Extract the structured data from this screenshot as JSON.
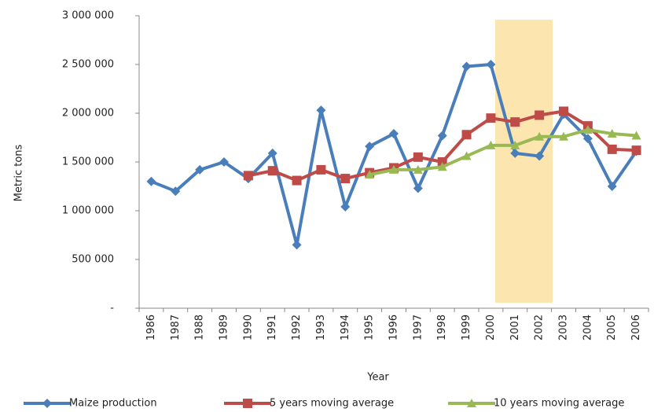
{
  "chart_data": {
    "type": "line",
    "x_label": "Year",
    "y_label": "Metric tons",
    "categories": [
      "1986",
      "1987",
      "1988",
      "1989",
      "1990",
      "1991",
      "1992",
      "1993",
      "1994",
      "1995",
      "1996",
      "1997",
      "1998",
      "1999",
      "2000",
      "2001",
      "2002",
      "2003",
      "2004",
      "2005",
      "2006"
    ],
    "series": [
      {
        "name": "Maize production",
        "color": "#4a7ebb",
        "marker": "diamond",
        "values": [
          1300000,
          1200000,
          1420000,
          1500000,
          1330000,
          1590000,
          650000,
          2030000,
          1040000,
          1660000,
          1790000,
          1230000,
          1770000,
          2480000,
          2500000,
          1590000,
          1560000,
          1990000,
          1740000,
          1250000,
          1610000
        ]
      },
      {
        "name": "5 years moving average",
        "color": "#be4b48",
        "marker": "square",
        "values": [
          null,
          null,
          null,
          null,
          1360000,
          1410000,
          1310000,
          1420000,
          1330000,
          1390000,
          1440000,
          1550000,
          1500000,
          1780000,
          1950000,
          1910000,
          1980000,
          2020000,
          1870000,
          1630000,
          1620000
        ]
      },
      {
        "name": "10 years moving average",
        "color": "#98b954",
        "marker": "triangle",
        "values": [
          null,
          null,
          null,
          null,
          null,
          null,
          null,
          null,
          null,
          1370000,
          1420000,
          1420000,
          1450000,
          1560000,
          1670000,
          1670000,
          1760000,
          1760000,
          1830000,
          1790000,
          1770000
        ]
      }
    ],
    "ylim": [
      0,
      3000000
    ],
    "yticks": [
      {
        "value": 0,
        "label": "-"
      },
      {
        "value": 500000,
        "label": "500 000"
      },
      {
        "value": 1000000,
        "label": "1 000 000"
      },
      {
        "value": 1500000,
        "label": "1 500 000"
      },
      {
        "value": 2000000,
        "label": "2 000 000"
      },
      {
        "value": 2500000,
        "label": "2 500 000"
      },
      {
        "value": 3000000,
        "label": "3 000 000"
      }
    ],
    "grid": false
  }
}
